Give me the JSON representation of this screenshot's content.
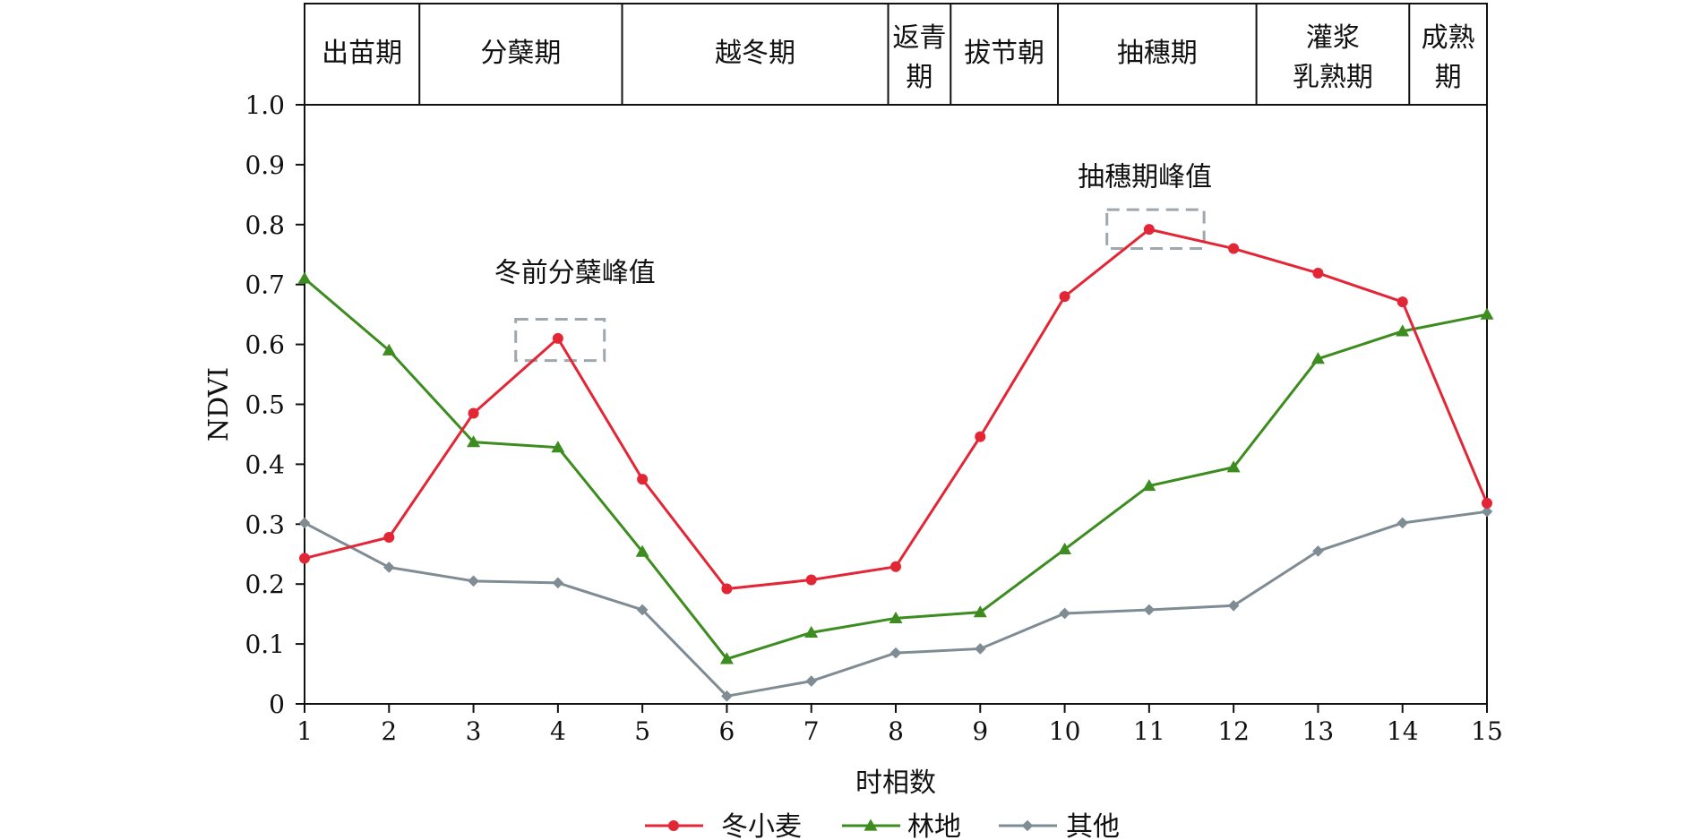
{
  "chart_data": {
    "type": "line",
    "xlabel": "时相数",
    "ylabel": "NDVI",
    "x": [
      1,
      2,
      3,
      4,
      5,
      6,
      7,
      8,
      9,
      10,
      11,
      12,
      13,
      14,
      15
    ],
    "xlim": [
      1,
      15
    ],
    "ylim": [
      0,
      1.0
    ],
    "yticks": [
      "0",
      "0.1",
      "0.2",
      "0.3",
      "0.4",
      "0.5",
      "0.6",
      "0.7",
      "0.8",
      "0.9",
      "1.0"
    ],
    "grid": false,
    "legend_position": "bottom",
    "stages": [
      {
        "label": [
          "出苗期"
        ],
        "start": 1,
        "end": 2.36
      },
      {
        "label": [
          "分蘖期"
        ],
        "start": 2.36,
        "end": 4.76
      },
      {
        "label": [
          "越冬期"
        ],
        "start": 4.76,
        "end": 7.91
      },
      {
        "label": [
          "返青",
          "期"
        ],
        "start": 7.91,
        "end": 8.65
      },
      {
        "label": [
          "拔节朝"
        ],
        "start": 8.65,
        "end": 9.92
      },
      {
        "label": [
          "抽穗期"
        ],
        "start": 9.92,
        "end": 12.27
      },
      {
        "label": [
          "灌浆",
          "乳熟期"
        ],
        "start": 12.27,
        "end": 14.08
      },
      {
        "label": [
          "成熟",
          "期"
        ],
        "start": 14.08,
        "end": 15
      }
    ],
    "series": [
      {
        "name": "冬小麦",
        "color": "#e32636",
        "marker": "circle",
        "values": [
          0.243,
          0.278,
          0.485,
          0.61,
          0.375,
          0.192,
          0.207,
          0.229,
          0.446,
          0.68,
          0.792,
          0.76,
          0.719,
          0.671,
          0.335
        ]
      },
      {
        "name": "林地",
        "color": "#3d8c1f",
        "marker": "triangle",
        "values": [
          0.71,
          0.59,
          0.437,
          0.428,
          0.254,
          0.075,
          0.119,
          0.143,
          0.153,
          0.258,
          0.364,
          0.395,
          0.576,
          0.622,
          0.65
        ]
      },
      {
        "name": "其他",
        "color": "#7f8c93",
        "marker": "diamond",
        "values": [
          0.302,
          0.228,
          0.205,
          0.202,
          0.157,
          0.013,
          0.038,
          0.085,
          0.092,
          0.151,
          0.157,
          0.164,
          0.255,
          0.302,
          0.321
        ]
      }
    ],
    "annotations": [
      {
        "text": "冬前分蘖峰值",
        "box_x": [
          3.5,
          4.55
        ],
        "box_y": [
          0.573,
          0.642
        ],
        "text_x": 4.2,
        "text_y": 0.72
      },
      {
        "text": "抽穗期峰值",
        "box_x": [
          10.5,
          11.65
        ],
        "box_y": [
          0.76,
          0.825
        ],
        "text_x": 10.95,
        "text_y": 0.88
      }
    ],
    "annotation_box_color": "#9ea7ad"
  }
}
